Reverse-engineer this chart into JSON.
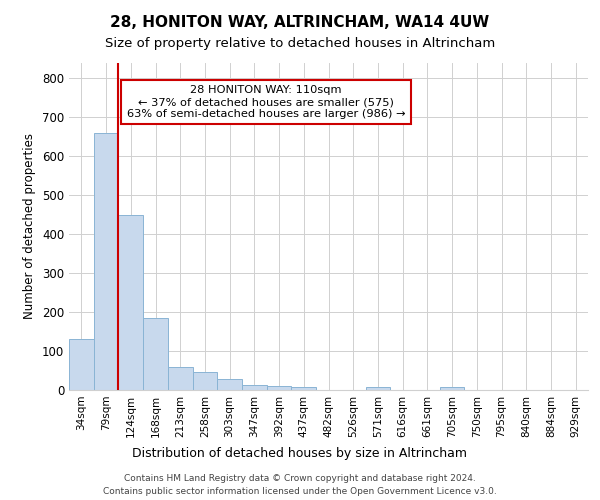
{
  "title1": "28, HONITON WAY, ALTRINCHAM, WA14 4UW",
  "title2": "Size of property relative to detached houses in Altrincham",
  "xlabel": "Distribution of detached houses by size in Altrincham",
  "ylabel": "Number of detached properties",
  "annotation_line1": "28 HONITON WAY: 110sqm",
  "annotation_line2": "← 37% of detached houses are smaller (575)",
  "annotation_line3": "63% of semi-detached houses are larger (986) →",
  "footnote1": "Contains HM Land Registry data © Crown copyright and database right 2024.",
  "footnote2": "Contains public sector information licensed under the Open Government Licence v3.0.",
  "categories": [
    "34sqm",
    "79sqm",
    "124sqm",
    "168sqm",
    "213sqm",
    "258sqm",
    "303sqm",
    "347sqm",
    "392sqm",
    "437sqm",
    "482sqm",
    "526sqm",
    "571sqm",
    "616sqm",
    "661sqm",
    "705sqm",
    "750sqm",
    "795sqm",
    "840sqm",
    "884sqm",
    "929sqm"
  ],
  "values": [
    130,
    660,
    450,
    184,
    60,
    47,
    27,
    14,
    10,
    8,
    0,
    0,
    8,
    0,
    0,
    8,
    0,
    0,
    0,
    0,
    0
  ],
  "bar_color": "#c8d9ed",
  "bar_edge_color": "#8ab4d4",
  "vline_color": "#cc0000",
  "annotation_box_color": "#cc0000",
  "annotation_fill": "#ffffff",
  "ylim": [
    0,
    840
  ],
  "yticks": [
    0,
    100,
    200,
    300,
    400,
    500,
    600,
    700,
    800
  ],
  "bg_color": "#ffffff",
  "grid_color": "#d0d0d0",
  "title1_fontsize": 11,
  "title2_fontsize": 9.5
}
